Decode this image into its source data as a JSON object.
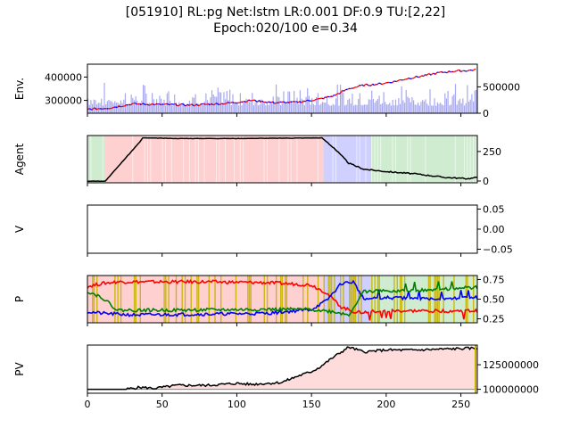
{
  "figure": {
    "title_line1": "[051910] RL:pg Net:lstm LR:0.001 DF:0.9 TU:[2,22]",
    "title_line2": "Epoch:020/100 e=0.34"
  },
  "colors": {
    "price_up": "#ff0000",
    "price_down": "#0000ff",
    "volume": "#a8a8f0",
    "agent_line": "#000000",
    "hold_shade": "#ffd0d0",
    "buy_shade": "#d0ecd0",
    "sell_shade": "#d0d0ff",
    "p_red": "#ff0000",
    "p_blue": "#0000ff",
    "p_green": "#008000",
    "p_highlight": "#c8b400",
    "pv_line": "#000000",
    "pv_fill": "#ffdcdc"
  },
  "chart_data": [
    {
      "type": "line",
      "name": "env",
      "ylabel": "Env.",
      "xlim": [
        0,
        261
      ],
      "ylim": [
        245000,
        455000
      ],
      "yticks": [
        "300000",
        "400000"
      ],
      "y2lim": [
        0,
        930000
      ],
      "y2ticks": [
        "0",
        "500000"
      ],
      "price_keypoints": [
        [
          0,
          262000
        ],
        [
          15,
          268000
        ],
        [
          30,
          285000
        ],
        [
          50,
          282000
        ],
        [
          70,
          280000
        ],
        [
          90,
          286000
        ],
        [
          100,
          292000
        ],
        [
          110,
          300000
        ],
        [
          125,
          290000
        ],
        [
          140,
          292000
        ],
        [
          155,
          305000
        ],
        [
          165,
          320000
        ],
        [
          175,
          350000
        ],
        [
          185,
          365000
        ],
        [
          195,
          370000
        ],
        [
          205,
          380000
        ],
        [
          215,
          395000
        ],
        [
          225,
          405000
        ],
        [
          235,
          418000
        ],
        [
          245,
          425000
        ],
        [
          255,
          428000
        ],
        [
          261,
          432000
        ]
      ],
      "volume_range": [
        60000,
        620000
      ]
    },
    {
      "type": "line",
      "name": "agent",
      "ylabel": "Agent",
      "xlim": [
        0,
        261
      ],
      "ylim": [
        -15,
        385
      ],
      "yticks": [
        "0",
        "250"
      ],
      "series_keypoints": [
        [
          0,
          0
        ],
        [
          12,
          0
        ],
        [
          35,
          330
        ],
        [
          37,
          365
        ],
        [
          60,
          360
        ],
        [
          100,
          360
        ],
        [
          157,
          365
        ],
        [
          165,
          280
        ],
        [
          175,
          150
        ],
        [
          185,
          100
        ],
        [
          200,
          80
        ],
        [
          220,
          60
        ],
        [
          240,
          30
        ],
        [
          255,
          20
        ],
        [
          261,
          30
        ]
      ],
      "regions": [
        {
          "x0": 0,
          "x1": 12,
          "action": "buy"
        },
        {
          "x0": 12,
          "x1": 158,
          "action": "hold"
        },
        {
          "x0": 158,
          "x1": 190,
          "action": "sell"
        },
        {
          "x0": 190,
          "x1": 261,
          "action": "buy"
        }
      ]
    },
    {
      "type": "line",
      "name": "value",
      "ylabel": "V",
      "xlim": [
        0,
        261
      ],
      "ylim": [
        -0.06,
        0.06
      ],
      "yticks": [
        "0.05",
        "0.00",
        "−0.05"
      ]
    },
    {
      "type": "line",
      "name": "policy",
      "ylabel": "P",
      "xlim": [
        0,
        261
      ],
      "ylim": [
        0.2,
        0.8
      ],
      "yticks": [
        "0.25",
        "0.50",
        "0.75"
      ],
      "series": [
        {
          "color_key": "p_red",
          "keypoints": [
            [
              0,
              0.66
            ],
            [
              10,
              0.7
            ],
            [
              20,
              0.72
            ],
            [
              40,
              0.72
            ],
            [
              80,
              0.72
            ],
            [
              120,
              0.71
            ],
            [
              150,
              0.68
            ],
            [
              160,
              0.58
            ],
            [
              170,
              0.4
            ],
            [
              180,
              0.33
            ],
            [
              200,
              0.35
            ],
            [
              230,
              0.35
            ],
            [
              261,
              0.35
            ]
          ]
        },
        {
          "color_key": "p_blue",
          "keypoints": [
            [
              0,
              0.34
            ],
            [
              10,
              0.32
            ],
            [
              30,
              0.3
            ],
            [
              80,
              0.31
            ],
            [
              120,
              0.32
            ],
            [
              150,
              0.37
            ],
            [
              160,
              0.48
            ],
            [
              170,
              0.7
            ],
            [
              178,
              0.72
            ],
            [
              185,
              0.5
            ],
            [
              200,
              0.52
            ],
            [
              230,
              0.5
            ],
            [
              261,
              0.52
            ]
          ]
        },
        {
          "color_key": "p_green",
          "keypoints": [
            [
              0,
              0.6
            ],
            [
              10,
              0.52
            ],
            [
              20,
              0.36
            ],
            [
              60,
              0.36
            ],
            [
              120,
              0.37
            ],
            [
              150,
              0.37
            ],
            [
              165,
              0.34
            ],
            [
              175,
              0.3
            ],
            [
              185,
              0.6
            ],
            [
              200,
              0.6
            ],
            [
              230,
              0.62
            ],
            [
              261,
              0.65
            ]
          ]
        }
      ]
    },
    {
      "type": "area",
      "name": "portfolio_value",
      "ylabel": "PV",
      "xlim": [
        0,
        261
      ],
      "ylim": [
        96000000,
        145000000
      ],
      "yticks": [
        "100000000",
        "125000000"
      ],
      "xticks": [
        "0",
        "50",
        "100",
        "150",
        "200",
        "250"
      ],
      "baseline": 100000000,
      "keypoints": [
        [
          0,
          100000000
        ],
        [
          25,
          100000000
        ],
        [
          35,
          102000000
        ],
        [
          45,
          101000000
        ],
        [
          60,
          104000000
        ],
        [
          80,
          104000000
        ],
        [
          100,
          106000000
        ],
        [
          110,
          105000000
        ],
        [
          130,
          107000000
        ],
        [
          140,
          113000000
        ],
        [
          150,
          118000000
        ],
        [
          155,
          122000000
        ],
        [
          165,
          133000000
        ],
        [
          175,
          143000000
        ],
        [
          185,
          138000000
        ],
        [
          200,
          140000000
        ],
        [
          220,
          140000000
        ],
        [
          240,
          141000000
        ],
        [
          261,
          142000000
        ]
      ]
    }
  ]
}
